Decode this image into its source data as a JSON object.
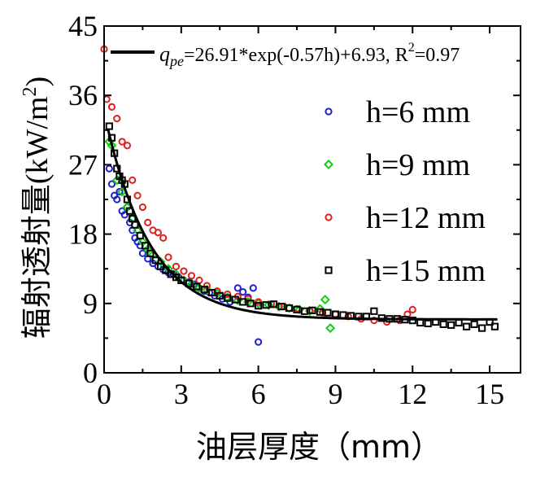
{
  "chart_data": {
    "type": "scatter",
    "title": "",
    "xlabel": "油层厚度（mm）",
    "ylabel_main": "辐射透射量",
    "ylabel_unit": "(kW/m",
    "ylabel_sup": "2",
    "ylabel_close": ")",
    "xlim": [
      0,
      16.2
    ],
    "ylim": [
      0,
      45
    ],
    "xticks": [
      0,
      3,
      6,
      9,
      12,
      15
    ],
    "yticks": [
      0,
      9,
      18,
      27,
      36,
      45
    ],
    "xtick_labels": [
      "0",
      "3",
      "6",
      "9",
      "12",
      "15"
    ],
    "ytick_labels": [
      "0",
      "9",
      "18",
      "27",
      "36",
      "45"
    ],
    "legend_position": "right",
    "fit": {
      "label_q": "q",
      "label_sub": "pe",
      "label_eq": "=26.91*exp(-0.57h)+6.93, R",
      "label_sup": "2",
      "label_r2": "=0.97",
      "a": 26.91,
      "b": -0.57,
      "c": 6.93,
      "color": "#000000"
    },
    "series": [
      {
        "name": "h=6 mm",
        "color": "#1f1fd0",
        "marker": "circle",
        "x": [
          0.2,
          0.3,
          0.4,
          0.5,
          0.6,
          0.7,
          0.8,
          0.9,
          1.0,
          1.1,
          1.2,
          1.3,
          1.4,
          1.5,
          1.7,
          1.9,
          2.1,
          2.3,
          2.5,
          2.7,
          2.9,
          3.1,
          3.3,
          3.5,
          3.7,
          3.9,
          4.1,
          4.3,
          4.6,
          4.9,
          5.2,
          5.4,
          5.6,
          5.8,
          6.0
        ],
        "y": [
          26.5,
          24.5,
          23.0,
          22.5,
          23.5,
          21.0,
          20.5,
          21.5,
          19.5,
          18.5,
          17.5,
          17.0,
          16.5,
          15.5,
          14.8,
          14.2,
          13.8,
          13.4,
          13.0,
          12.8,
          12.4,
          12.0,
          11.8,
          11.5,
          11.0,
          10.6,
          10.4,
          10.0,
          9.6,
          9.2,
          11.0,
          10.5,
          9.8,
          11.0,
          4.0
        ]
      },
      {
        "name": "h=9 mm",
        "color": "#10d010",
        "marker": "diamond",
        "x": [
          0.2,
          0.3,
          0.5,
          0.7,
          0.9,
          1.1,
          1.3,
          1.5,
          1.7,
          1.9,
          2.2,
          2.5,
          2.8,
          3.1,
          3.4,
          3.7,
          4.0,
          4.4,
          4.8,
          5.2,
          5.6,
          6.0,
          6.4,
          6.8,
          7.2,
          7.6,
          8.0,
          8.4,
          8.6,
          8.8
        ],
        "y": [
          30.0,
          29.5,
          25.0,
          23.5,
          21.5,
          20.0,
          18.5,
          17.0,
          16.0,
          15.3,
          14.4,
          13.5,
          12.8,
          12.0,
          11.5,
          11.0,
          10.8,
          10.3,
          9.8,
          9.4,
          9.2,
          9.0,
          8.8,
          8.6,
          8.4,
          8.2,
          8.0,
          8.3,
          9.5,
          5.8
        ]
      },
      {
        "name": "h=12 mm",
        "color": "#e02020",
        "marker": "circle",
        "x": [
          0.0,
          0.1,
          0.3,
          0.5,
          0.7,
          0.9,
          1.1,
          1.3,
          1.5,
          1.7,
          1.9,
          2.1,
          2.3,
          2.5,
          2.8,
          3.1,
          3.4,
          3.7,
          4.0,
          4.4,
          4.8,
          5.2,
          5.6,
          6.0,
          6.5,
          7.0,
          7.5,
          8.0,
          8.5,
          9.0,
          9.5,
          10.0,
          10.5,
          11.0,
          11.5,
          11.8,
          12.0
        ],
        "y": [
          42.0,
          35.5,
          34.5,
          33.0,
          30.0,
          29.5,
          25.0,
          23.0,
          21.5,
          19.5,
          18.5,
          18.2,
          17.5,
          15.0,
          13.8,
          13.2,
          12.6,
          12.0,
          11.3,
          10.6,
          10.2,
          9.9,
          9.6,
          9.2,
          8.9,
          8.6,
          8.3,
          8.1,
          7.8,
          7.6,
          7.3,
          7.0,
          6.8,
          6.6,
          6.8,
          7.6,
          8.2
        ]
      },
      {
        "name": "h=15 mm",
        "color": "#000000",
        "marker": "square",
        "x": [
          0.2,
          0.3,
          0.4,
          0.5,
          0.6,
          0.7,
          0.8,
          0.9,
          1.0,
          1.1,
          1.2,
          1.4,
          1.6,
          1.8,
          2.0,
          2.2,
          2.4,
          2.6,
          2.8,
          3.0,
          3.3,
          3.6,
          3.9,
          4.2,
          4.5,
          4.8,
          5.1,
          5.4,
          5.7,
          6.0,
          6.3,
          6.6,
          6.9,
          7.2,
          7.5,
          7.8,
          8.1,
          8.4,
          8.7,
          9.0,
          9.3,
          9.6,
          9.9,
          10.2,
          10.5,
          10.8,
          11.1,
          11.4,
          11.7,
          12.0,
          12.3,
          12.6,
          12.9,
          13.2,
          13.5,
          13.8,
          14.1,
          14.4,
          14.7,
          15.0,
          15.2
        ],
        "y": [
          32.0,
          30.5,
          28.5,
          26.5,
          25.5,
          25.0,
          24.5,
          22.5,
          21.0,
          20.0,
          19.2,
          17.8,
          16.5,
          15.5,
          14.6,
          13.8,
          13.3,
          12.8,
          12.4,
          12.0,
          11.6,
          11.2,
          10.8,
          10.4,
          10.0,
          9.7,
          9.5,
          9.2,
          9.0,
          8.7,
          8.8,
          8.9,
          8.6,
          8.4,
          8.2,
          8.0,
          8.1,
          7.9,
          7.8,
          7.6,
          7.5,
          7.4,
          7.3,
          7.3,
          8.0,
          7.1,
          7.0,
          7.0,
          6.9,
          6.8,
          6.5,
          6.4,
          6.6,
          6.3,
          6.2,
          6.5,
          6.0,
          6.3,
          5.8,
          6.6,
          6.0
        ]
      }
    ]
  }
}
